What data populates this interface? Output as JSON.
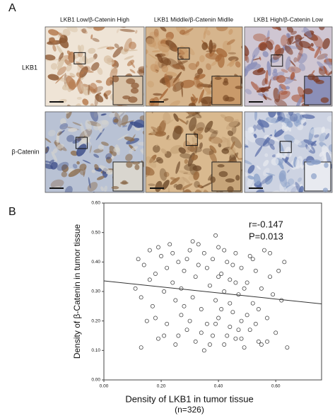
{
  "panel_a": {
    "label": "A",
    "columns": [
      "LKB1 Low/β-Catenin High",
      "LKB1 Middle/β-Catenin Midlle",
      "LKB1 High/β-Catenin Low"
    ],
    "rows": [
      "LKB1",
      "β-Catenin"
    ]
  },
  "chart_data": {
    "type": "scatter",
    "panel_label": "B",
    "x_label": "Density of LKB1 in tumor tissue",
    "x_sublabel": "(n=326)",
    "y_label": "Density of β-Catenin in tumor tissue",
    "annotations": [
      "r=-0.147",
      "P=0.013"
    ],
    "xlim": [
      0,
      0.76
    ],
    "ylim": [
      0,
      0.6
    ],
    "xticks": [
      {
        "value": 0,
        "label": "0.00"
      },
      {
        "value": 0.2,
        "label": "0.20"
      },
      {
        "value": 0.4,
        "label": "0.40"
      },
      {
        "value": 0.6,
        "label": "0.60"
      }
    ],
    "yticks": [
      {
        "value": 0,
        "label": "0.00"
      },
      {
        "value": 0.1,
        "label": "0.10"
      },
      {
        "value": 0.2,
        "label": "0.20"
      },
      {
        "value": 0.3,
        "label": "0.30"
      },
      {
        "value": 0.4,
        "label": "0.40"
      },
      {
        "value": 0.5,
        "label": "0.50"
      },
      {
        "value": 0.6,
        "label": "0.60"
      }
    ],
    "color": "#333333",
    "x": [
      0.12,
      0.14,
      0.13,
      0.15,
      0.16,
      0.17,
      0.18,
      0.19,
      0.2,
      0.21,
      0.22,
      0.23,
      0.24,
      0.25,
      0.26,
      0.27,
      0.28,
      0.29,
      0.3,
      0.31,
      0.32,
      0.33,
      0.34,
      0.35,
      0.36,
      0.37,
      0.38,
      0.38,
      0.39,
      0.4,
      0.4,
      0.41,
      0.42,
      0.42,
      0.43,
      0.44,
      0.44,
      0.45,
      0.46,
      0.46,
      0.47,
      0.48,
      0.48,
      0.49,
      0.5,
      0.51,
      0.51,
      0.52,
      0.53,
      0.54,
      0.55,
      0.56,
      0.57,
      0.58,
      0.6,
      0.62,
      0.63,
      0.64,
      0.11,
      0.13,
      0.16,
      0.19,
      0.22,
      0.25,
      0.28,
      0.31,
      0.34,
      0.36,
      0.39,
      0.41,
      0.43,
      0.45,
      0.47,
      0.49,
      0.52,
      0.54,
      0.57,
      0.59,
      0.61,
      0.35,
      0.3,
      0.27,
      0.24,
      0.21,
      0.18,
      0.33,
      0.37,
      0.4,
      0.44,
      0.48,
      0.53,
      0.42,
      0.46,
      0.39,
      0.32,
      0.29,
      0.26,
      0.5,
      0.55,
      0.58
    ],
    "values": [
      0.41,
      0.39,
      0.11,
      0.2,
      0.44,
      0.25,
      0.36,
      0.14,
      0.42,
      0.3,
      0.19,
      0.46,
      0.33,
      0.12,
      0.4,
      0.22,
      0.37,
      0.17,
      0.44,
      0.28,
      0.13,
      0.39,
      0.24,
      0.43,
      0.19,
      0.32,
      0.41,
      0.15,
      0.27,
      0.45,
      0.21,
      0.36,
      0.12,
      0.3,
      0.4,
      0.18,
      0.34,
      0.23,
      0.43,
      0.14,
      0.29,
      0.38,
      0.2,
      0.11,
      0.33,
      0.42,
      0.17,
      0.26,
      0.37,
      0.13,
      0.31,
      0.44,
      0.21,
      0.35,
      0.16,
      0.27,
      0.4,
      0.11,
      0.31,
      0.28,
      0.34,
      0.45,
      0.38,
      0.27,
      0.25,
      0.47,
      0.16,
      0.38,
      0.49,
      0.24,
      0.15,
      0.39,
      0.17,
      0.31,
      0.41,
      0.24,
      0.13,
      0.29,
      0.37,
      0.1,
      0.2,
      0.31,
      0.43,
      0.15,
      0.21,
      0.46,
      0.12,
      0.35,
      0.26,
      0.14,
      0.19,
      0.44,
      0.33,
      0.19,
      0.35,
      0.41,
      0.15,
      0.22,
      0.12,
      0.43
    ],
    "fit_line": {
      "x": [
        0,
        0.76
      ],
      "y": [
        0.336,
        0.258
      ]
    }
  }
}
